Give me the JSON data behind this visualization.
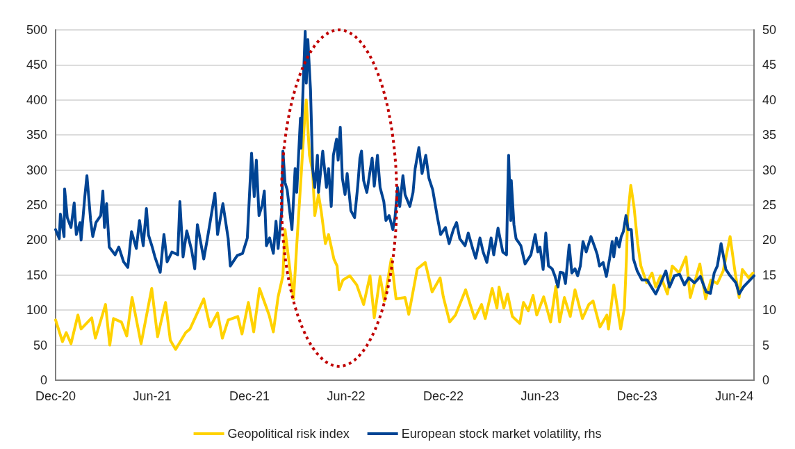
{
  "chart_data": {
    "type": "line",
    "xlim": [
      "2020-12-01",
      "2024-07-08"
    ],
    "xticks": [
      {
        "value": "2020-12-01",
        "label": "Dec-20"
      },
      {
        "value": "2021-06-01",
        "label": "Jun-21"
      },
      {
        "value": "2021-12-01",
        "label": "Dec-21"
      },
      {
        "value": "2022-06-01",
        "label": "Jun-22"
      },
      {
        "value": "2022-12-01",
        "label": "Dec-22"
      },
      {
        "value": "2023-06-01",
        "label": "Jun-23"
      },
      {
        "value": "2023-12-01",
        "label": "Dec-23"
      },
      {
        "value": "2024-06-01",
        "label": "Jun-24"
      }
    ],
    "ylim": [
      0,
      500
    ],
    "yticks": [
      0,
      50,
      100,
      150,
      200,
      250,
      300,
      350,
      400,
      450,
      500
    ],
    "y2lim": [
      0,
      50
    ],
    "y2ticks": [
      0,
      5,
      10,
      15,
      20,
      25,
      30,
      35,
      40,
      45,
      50
    ],
    "grid": "y",
    "legend": "bottom",
    "marker": "none",
    "line_style": "solid",
    "series": [
      {
        "name": "Geopolitical risk index",
        "color": "#ffd200",
        "x": [
          "2020-12-01",
          "2020-12-14",
          "2020-12-21",
          "2020-12-30",
          "2021-01-12",
          "2021-01-18",
          "2021-02-07",
          "2021-02-14",
          "2021-03-05",
          "2021-03-13",
          "2021-03-20",
          "2021-04-04",
          "2021-04-14",
          "2021-04-24",
          "2021-05-11",
          "2021-05-31",
          "2021-06-11",
          "2021-06-26",
          "2021-07-05",
          "2021-07-15",
          "2021-08-03",
          "2021-08-11",
          "2021-09-06",
          "2021-09-18",
          "2021-10-02",
          "2021-10-11",
          "2021-10-22",
          "2021-11-09",
          "2021-11-17",
          "2021-11-29",
          "2021-12-09",
          "2021-12-20",
          "2022-01-07",
          "2022-01-15",
          "2022-01-24",
          "2022-02-02",
          "2022-02-06",
          "2022-02-22",
          "2022-02-28",
          "2022-03-08",
          "2022-03-15",
          "2022-03-18",
          "2022-03-24",
          "2022-03-30",
          "2022-04-03",
          "2022-04-10",
          "2022-04-15",
          "2022-04-23",
          "2022-04-29",
          "2022-05-09",
          "2022-05-15",
          "2022-05-19",
          "2022-05-26",
          "2022-06-08",
          "2022-06-21",
          "2022-07-04",
          "2022-07-16",
          "2022-07-24",
          "2022-08-04",
          "2022-08-12",
          "2022-08-25",
          "2022-09-03",
          "2022-09-20",
          "2022-09-27",
          "2022-10-13",
          "2022-10-28",
          "2022-11-10",
          "2022-11-25",
          "2022-12-01",
          "2022-12-13",
          "2022-12-24",
          "2023-01-12",
          "2023-01-29",
          "2023-02-11",
          "2023-02-18",
          "2023-03-03",
          "2023-03-12",
          "2023-03-16",
          "2023-03-25",
          "2023-04-01",
          "2023-04-10",
          "2023-04-24",
          "2023-05-01",
          "2023-05-10",
          "2023-05-19",
          "2023-05-26",
          "2023-06-08",
          "2023-06-21",
          "2023-07-01",
          "2023-07-08",
          "2023-07-17",
          "2023-07-28",
          "2023-08-06",
          "2023-08-20",
          "2023-09-01",
          "2023-09-09",
          "2023-09-22",
          "2023-10-05",
          "2023-10-08",
          "2023-10-18",
          "2023-10-31",
          "2023-11-07",
          "2023-11-11",
          "2023-11-13",
          "2023-11-19",
          "2023-11-25",
          "2023-12-02",
          "2023-12-08",
          "2023-12-19",
          "2023-12-29",
          "2024-01-05",
          "2024-01-14",
          "2024-01-27",
          "2024-02-05",
          "2024-02-18",
          "2024-03-02",
          "2024-03-10",
          "2024-03-28",
          "2024-04-08",
          "2024-04-18",
          "2024-04-30",
          "2024-05-11",
          "2024-05-24",
          "2024-06-02",
          "2024-06-10",
          "2024-06-16",
          "2024-06-28",
          "2024-07-06"
        ],
        "values": [
          86,
          55,
          68,
          52,
          93,
          73,
          89,
          60,
          108,
          50,
          88,
          83,
          63,
          118,
          52,
          131,
          62,
          111,
          57,
          44,
          68,
          73,
          116,
          76,
          96,
          60,
          86,
          91,
          66,
          111,
          69,
          131,
          93,
          69,
          119,
          149,
          215,
          116,
          192,
          288,
          374,
          400,
          321,
          298,
          235,
          265,
          242,
          195,
          208,
          173,
          163,
          129,
          143,
          149,
          136,
          108,
          149,
          89,
          148,
          113,
          173,
          116,
          118,
          94,
          159,
          168,
          126,
          146,
          119,
          83,
          93,
          129,
          88,
          108,
          88,
          131,
          103,
          133,
          103,
          123,
          91,
          81,
          111,
          99,
          121,
          93,
          119,
          83,
          134,
          83,
          118,
          91,
          129,
          88,
          108,
          113,
          76,
          93,
          73,
          136,
          73,
          103,
          176,
          232,
          278,
          248,
          195,
          163,
          139,
          153,
          133,
          149,
          123,
          163,
          153,
          176,
          118,
          166,
          116,
          143,
          138,
          156,
          205,
          156,
          118,
          158,
          146,
          153
        ]
      },
      {
        "name": "European stock market volatility, rhs",
        "color": "#004494",
        "axis": "y2",
        "x": [
          "2020-12-01",
          "2020-12-08",
          "2020-12-10",
          "2020-12-17",
          "2020-12-18",
          "2020-12-23",
          "2020-12-30",
          "2021-01-05",
          "2021-01-09",
          "2021-01-16",
          "2021-01-18",
          "2021-01-25",
          "2021-01-29",
          "2021-02-05",
          "2021-02-09",
          "2021-02-15",
          "2021-02-24",
          "2021-02-28",
          "2021-03-03",
          "2021-03-07",
          "2021-03-12",
          "2021-03-23",
          "2021-03-30",
          "2021-04-08",
          "2021-04-16",
          "2021-04-23",
          "2021-05-02",
          "2021-05-08",
          "2021-05-15",
          "2021-05-21",
          "2021-05-25",
          "2021-06-01",
          "2021-06-06",
          "2021-06-16",
          "2021-06-23",
          "2021-06-29",
          "2021-07-08",
          "2021-07-19",
          "2021-07-23",
          "2021-07-29",
          "2021-08-05",
          "2021-08-14",
          "2021-08-20",
          "2021-08-25",
          "2021-09-06",
          "2021-09-13",
          "2021-09-27",
          "2021-10-02",
          "2021-10-12",
          "2021-10-22",
          "2021-10-26",
          "2021-11-08",
          "2021-11-18",
          "2021-11-27",
          "2021-12-05",
          "2021-12-10",
          "2021-12-14",
          "2021-12-19",
          "2021-12-25",
          "2021-12-29",
          "2022-01-02",
          "2022-01-08",
          "2022-01-15",
          "2022-01-20",
          "2022-01-24",
          "2022-01-31",
          "2022-02-02",
          "2022-02-06",
          "2022-02-10",
          "2022-02-19",
          "2022-02-25",
          "2022-02-28",
          "2022-03-07",
          "2022-03-08",
          "2022-03-12",
          "2022-03-16",
          "2022-03-18",
          "2022-03-21",
          "2022-03-26",
          "2022-03-30",
          "2022-04-03",
          "2022-04-08",
          "2022-04-10",
          "2022-04-18",
          "2022-04-25",
          "2022-04-29",
          "2022-05-04",
          "2022-05-08",
          "2022-05-14",
          "2022-05-17",
          "2022-05-21",
          "2022-05-25",
          "2022-05-30",
          "2022-06-03",
          "2022-06-10",
          "2022-06-17",
          "2022-06-23",
          "2022-06-27",
          "2022-06-30",
          "2022-07-04",
          "2022-07-10",
          "2022-07-16",
          "2022-07-20",
          "2022-07-24",
          "2022-07-30",
          "2022-08-04",
          "2022-08-11",
          "2022-08-15",
          "2022-08-21",
          "2022-08-28",
          "2022-09-01",
          "2022-09-06",
          "2022-09-10",
          "2022-09-16",
          "2022-09-20",
          "2022-09-29",
          "2022-10-05",
          "2022-10-09",
          "2022-10-16",
          "2022-10-22",
          "2022-10-29",
          "2022-11-04",
          "2022-11-11",
          "2022-11-20",
          "2022-11-26",
          "2022-12-05",
          "2022-12-12",
          "2022-12-20",
          "2022-12-26",
          "2023-01-01",
          "2023-01-11",
          "2023-01-17",
          "2023-01-26",
          "2023-01-31",
          "2023-02-08",
          "2023-02-14",
          "2023-02-21",
          "2023-03-01",
          "2023-03-06",
          "2023-03-14",
          "2023-03-23",
          "2023-03-30",
          "2023-04-01",
          "2023-04-03",
          "2023-04-07",
          "2023-04-08",
          "2023-04-13",
          "2023-04-17",
          "2023-04-26",
          "2023-05-04",
          "2023-05-15",
          "2023-05-23",
          "2023-05-28",
          "2023-06-01",
          "2023-06-07",
          "2023-06-12",
          "2023-06-17",
          "2023-06-24",
          "2023-06-29",
          "2023-07-05",
          "2023-07-09",
          "2023-07-15",
          "2023-07-19",
          "2023-07-26",
          "2023-07-31",
          "2023-08-06",
          "2023-08-11",
          "2023-08-16",
          "2023-08-21",
          "2023-08-27",
          "2023-09-05",
          "2023-09-14",
          "2023-09-17",
          "2023-09-21",
          "2023-09-28",
          "2023-10-04",
          "2023-10-10",
          "2023-10-15",
          "2023-10-18",
          "2023-10-23",
          "2023-10-28",
          "2023-11-01",
          "2023-11-05",
          "2023-11-10",
          "2023-11-14",
          "2023-11-20",
          "2023-11-24",
          "2023-12-01",
          "2023-12-10",
          "2023-12-20",
          "2023-12-27",
          "2024-01-05",
          "2024-01-14",
          "2024-01-24",
          "2024-01-31",
          "2024-02-09",
          "2024-02-19",
          "2024-02-28",
          "2024-03-07",
          "2024-03-18",
          "2024-03-29",
          "2024-04-09",
          "2024-04-17",
          "2024-04-24",
          "2024-04-30",
          "2024-05-07",
          "2024-05-11",
          "2024-05-16",
          "2024-05-24",
          "2024-06-04",
          "2024-06-10",
          "2024-06-18",
          "2024-07-08"
        ],
        "values": [
          21.5,
          20.2,
          23.7,
          20.5,
          27.3,
          23.2,
          21.8,
          25.3,
          20.8,
          22.5,
          20.0,
          26.2,
          29.2,
          22.8,
          20.5,
          22.5,
          23.5,
          27.0,
          21.8,
          25.2,
          19.0,
          17.9,
          19.0,
          16.9,
          16.1,
          21.2,
          18.8,
          22.8,
          19.2,
          24.5,
          20.7,
          19.0,
          17.6,
          15.4,
          20.8,
          16.9,
          18.3,
          17.9,
          25.5,
          17.6,
          21.3,
          18.6,
          15.9,
          22.2,
          17.3,
          20.3,
          26.7,
          20.8,
          25.2,
          20.2,
          16.3,
          17.8,
          18.1,
          20.3,
          32.4,
          26.2,
          31.4,
          23.5,
          25.0,
          27.0,
          19.2,
          20.3,
          18.1,
          22.7,
          18.8,
          24.3,
          32.7,
          28.2,
          27.2,
          21.5,
          30.2,
          26.8,
          37.4,
          33.1,
          41.7,
          49.8,
          42.4,
          48.6,
          41.4,
          30.2,
          27.5,
          32.1,
          26.8,
          32.7,
          27.5,
          30.2,
          24.8,
          32.1,
          34.4,
          31.4,
          36.1,
          28.8,
          26.5,
          29.5,
          24.2,
          23.2,
          27.8,
          31.7,
          32.7,
          28.5,
          26.8,
          29.8,
          31.7,
          27.7,
          32.1,
          27.5,
          25.5,
          22.8,
          23.5,
          21.5,
          23.2,
          27.5,
          24.8,
          29.2,
          26.5,
          24.8,
          26.8,
          30.2,
          33.2,
          29.5,
          32.1,
          28.8,
          27.2,
          23.2,
          20.8,
          21.8,
          19.5,
          21.5,
          22.5,
          20.2,
          19.2,
          21.0,
          18.6,
          17.4,
          20.3,
          18.3,
          16.8,
          20.3,
          17.9,
          21.7,
          18.3,
          17.9,
          25.8,
          32.1,
          22.8,
          28.5,
          22.2,
          20.2,
          19.2,
          16.6,
          17.9,
          20.8,
          18.3,
          19.0,
          15.8,
          21.0,
          16.3,
          15.9,
          14.9,
          13.3,
          15.4,
          15.3,
          13.8,
          19.3,
          15.3,
          15.9,
          14.9,
          16.3,
          19.8,
          18.3,
          20.5,
          18.6,
          17.9,
          16.3,
          16.8,
          14.8,
          17.3,
          19.8,
          17.6,
          20.3,
          19.0,
          20.5,
          21.2,
          23.5,
          21.5,
          21.5,
          17.3,
          15.6,
          14.3,
          14.3,
          13.4,
          12.3,
          13.8,
          15.6,
          13.3,
          14.9,
          15.1,
          13.6,
          14.6,
          13.9,
          14.8,
          12.6,
          12.4,
          15.3,
          16.3,
          19.5,
          17.9,
          15.8,
          14.9,
          13.9,
          12.3,
          13.3,
          14.9
        ]
      }
    ]
  }
}
